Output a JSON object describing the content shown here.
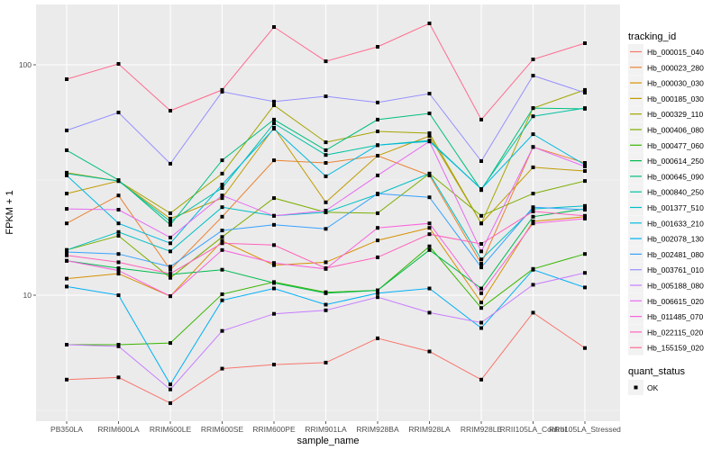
{
  "chart_data": {
    "type": "line",
    "title": "",
    "xlabel": "sample_name",
    "ylabel": "FPKM + 1",
    "yscale": "log10",
    "ylim": [
      3,
      170
    ],
    "yticks": [
      10,
      100
    ],
    "ytick_labels": [
      "10",
      "100"
    ],
    "grid": true,
    "categories": [
      "PB350LA",
      "RRIM600LA",
      "RRIM600LE",
      "RRIM600SE",
      "RRIM600PE",
      "RRIM901LA",
      "RRIM928BA",
      "RRIM928LA",
      "RRIM928LE",
      "RRII105LA_Control",
      "RRII105LA_Stressed"
    ],
    "legend": {
      "title": "tracking_id",
      "position": "right",
      "shape_title": "quant_status",
      "shape_entries": [
        "OK"
      ]
    },
    "series": [
      {
        "name": "Hb_000015_040",
        "color": "#F8766D",
        "values": [
          4.3,
          4.4,
          3.4,
          4.8,
          5.0,
          5.1,
          6.5,
          5.7,
          4.3,
          8.4,
          5.9
        ]
      },
      {
        "name": "Hb_000023_280",
        "color": "#EA8331",
        "values": [
          20.5,
          27.1,
          12.9,
          21.9,
          38.5,
          37.5,
          40.3,
          33.1,
          13.7,
          44.0,
          37.5
        ]
      },
      {
        "name": "Hb_000030_030",
        "color": "#D89000",
        "values": [
          11.8,
          12.4,
          9.9,
          17.2,
          13.5,
          13.9,
          17.3,
          19.6,
          9.3,
          20.9,
          21.9
        ]
      },
      {
        "name": "Hb_000185_030",
        "color": "#C09B00",
        "values": [
          27.6,
          31.3,
          21.5,
          26.4,
          53.3,
          25.3,
          40.3,
          49.1,
          20.5,
          35.9,
          34.6
        ]
      },
      {
        "name": "Hb_000329_110",
        "color": "#A3A500",
        "values": [
          34.0,
          31.3,
          22.7,
          33.7,
          66.7,
          46.1,
          51.4,
          50.5,
          20.5,
          64.9,
          77.8
        ]
      },
      {
        "name": "Hb_000406_080",
        "color": "#7CAE00",
        "values": [
          15.7,
          18.1,
          11.9,
          17.9,
          26.4,
          22.9,
          22.7,
          33.7,
          22.1,
          27.6,
          31.3
        ]
      },
      {
        "name": "Hb_000477_060",
        "color": "#39B600",
        "values": [
          6.1,
          6.1,
          6.2,
          10.1,
          11.4,
          10.3,
          10.5,
          16.3,
          8.8,
          13.0,
          15.1
        ]
      },
      {
        "name": "Hb_000614_250",
        "color": "#00BB4E",
        "values": [
          14.1,
          13.1,
          12.3,
          12.9,
          11.3,
          10.2,
          10.5,
          15.7,
          10.7,
          21.9,
          23.7
        ]
      },
      {
        "name": "Hb_000645_090",
        "color": "#00BF7D",
        "values": [
          42.6,
          31.6,
          20.2,
          38.5,
          57.8,
          42.6,
          57.8,
          61.5,
          28.6,
          64.9,
          64.4
        ]
      },
      {
        "name": "Hb_000840_250",
        "color": "#00C1A3",
        "values": [
          33.7,
          31.3,
          20.9,
          29.2,
          55.7,
          40.6,
          44.8,
          46.9,
          28.9,
          59.8,
          64.9
        ]
      },
      {
        "name": "Hb_001377_510",
        "color": "#00BFC4",
        "values": [
          15.7,
          18.8,
          15.5,
          24.1,
          22.1,
          22.9,
          27.4,
          33.7,
          14.3,
          23.7,
          24.4
        ]
      },
      {
        "name": "Hb_001633_210",
        "color": "#00BAE0",
        "values": [
          33.1,
          20.5,
          16.8,
          30.2,
          52.8,
          32.8,
          44.8,
          46.5,
          28.9,
          50.0,
          36.8
        ]
      },
      {
        "name": "Hb_002078_130",
        "color": "#00B0F6",
        "values": [
          10.9,
          10.0,
          4.1,
          9.5,
          10.7,
          9.1,
          10.2,
          10.7,
          7.2,
          12.9,
          10.8
        ]
      },
      {
        "name": "Hb_002481_080",
        "color": "#35A2FF",
        "values": [
          15.4,
          15.1,
          13.3,
          19.1,
          20.2,
          19.4,
          27.6,
          26.6,
          13.2,
          24.1,
          23.5
        ]
      },
      {
        "name": "Hb_003761_010",
        "color": "#9590FF",
        "values": [
          51.9,
          62.1,
          37.2,
          76.4,
          69.2,
          73.0,
          68.6,
          75.0,
          38.2,
          89.8,
          75.7
        ]
      },
      {
        "name": "Hb_005188_080",
        "color": "#C77CFF",
        "values": [
          6.1,
          6.0,
          3.9,
          7.0,
          8.3,
          8.6,
          9.8,
          8.4,
          7.6,
          11.1,
          12.5
        ]
      },
      {
        "name": "Hb_006615_020",
        "color": "#E76BF3",
        "values": [
          23.7,
          23.5,
          17.8,
          27.1,
          22.1,
          23.3,
          33.1,
          46.5,
          15.5,
          44.0,
          36.2
        ]
      },
      {
        "name": "Hb_011485_070",
        "color": "#FA62DB",
        "values": [
          14.1,
          12.8,
          9.9,
          15.7,
          13.8,
          13.0,
          19.6,
          20.5,
          10.2,
          20.5,
          21.5
        ]
      },
      {
        "name": "Hb_022115_020",
        "color": "#FF62BC",
        "values": [
          14.9,
          13.9,
          12.4,
          16.8,
          16.5,
          13.1,
          14.6,
          18.4,
          16.7,
          23.1,
          22.1
        ]
      },
      {
        "name": "Hb_155159_020",
        "color": "#FF6C91",
        "values": [
          86.6,
          100.9,
          63.2,
          77.8,
          145.9,
          103.6,
          119.7,
          151.2,
          57.8,
          105.5,
          124.1
        ]
      }
    ]
  }
}
